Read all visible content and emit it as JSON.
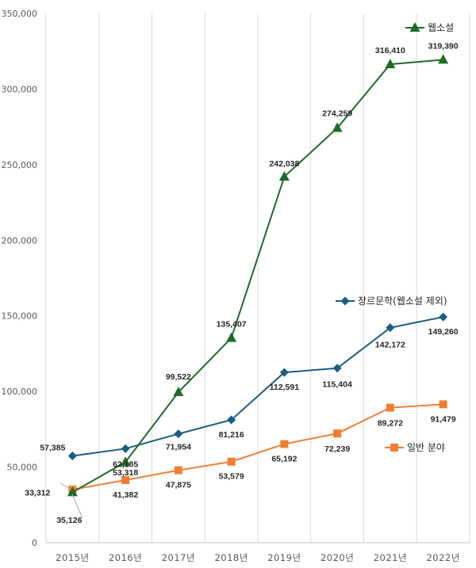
{
  "chart_data": {
    "type": "line",
    "title": "",
    "xlabel": "",
    "ylabel": "",
    "ylim": [
      0,
      350000
    ],
    "yticks": [
      0,
      50000,
      100000,
      150000,
      200000,
      250000,
      300000,
      350000
    ],
    "ytick_labels": [
      "0",
      "50,000",
      "100,000",
      "150,000",
      "200,000",
      "250,000",
      "300,000",
      "350,000"
    ],
    "categories": [
      "2015년",
      "2016년",
      "2017년",
      "2018년",
      "2019년",
      "2020년",
      "2021년",
      "2022년"
    ],
    "grid": "vertical",
    "series": [
      {
        "name": "웹소설",
        "color": "#1f6b26",
        "marker": "triangle",
        "values": [
          33312,
          53318,
          99522,
          135407,
          242038,
          274259,
          316410,
          319390
        ],
        "labels": [
          "33,312",
          "53,318",
          "99,522",
          "135,407",
          "242,038",
          "274,259",
          "316,410",
          "319,390"
        ]
      },
      {
        "name": "장르문학(웹소설 제외)",
        "color": "#1b5e7e",
        "marker": "diamond",
        "values": [
          57385,
          62185,
          71954,
          81216,
          112591,
          115404,
          142172,
          149260
        ],
        "labels": [
          "57,385",
          "62,185",
          "71,954",
          "81,216",
          "112,591",
          "115,404",
          "142,172",
          "149,260"
        ]
      },
      {
        "name": "일반 분야",
        "color": "#f07f34",
        "marker": "square",
        "values": [
          35126,
          41382,
          47875,
          53579,
          65192,
          72239,
          89272,
          91479
        ],
        "labels": [
          "35,126",
          "41,382",
          "47,875",
          "53,579",
          "65,192",
          "72,239",
          "89,272",
          "91,479"
        ]
      }
    ]
  }
}
